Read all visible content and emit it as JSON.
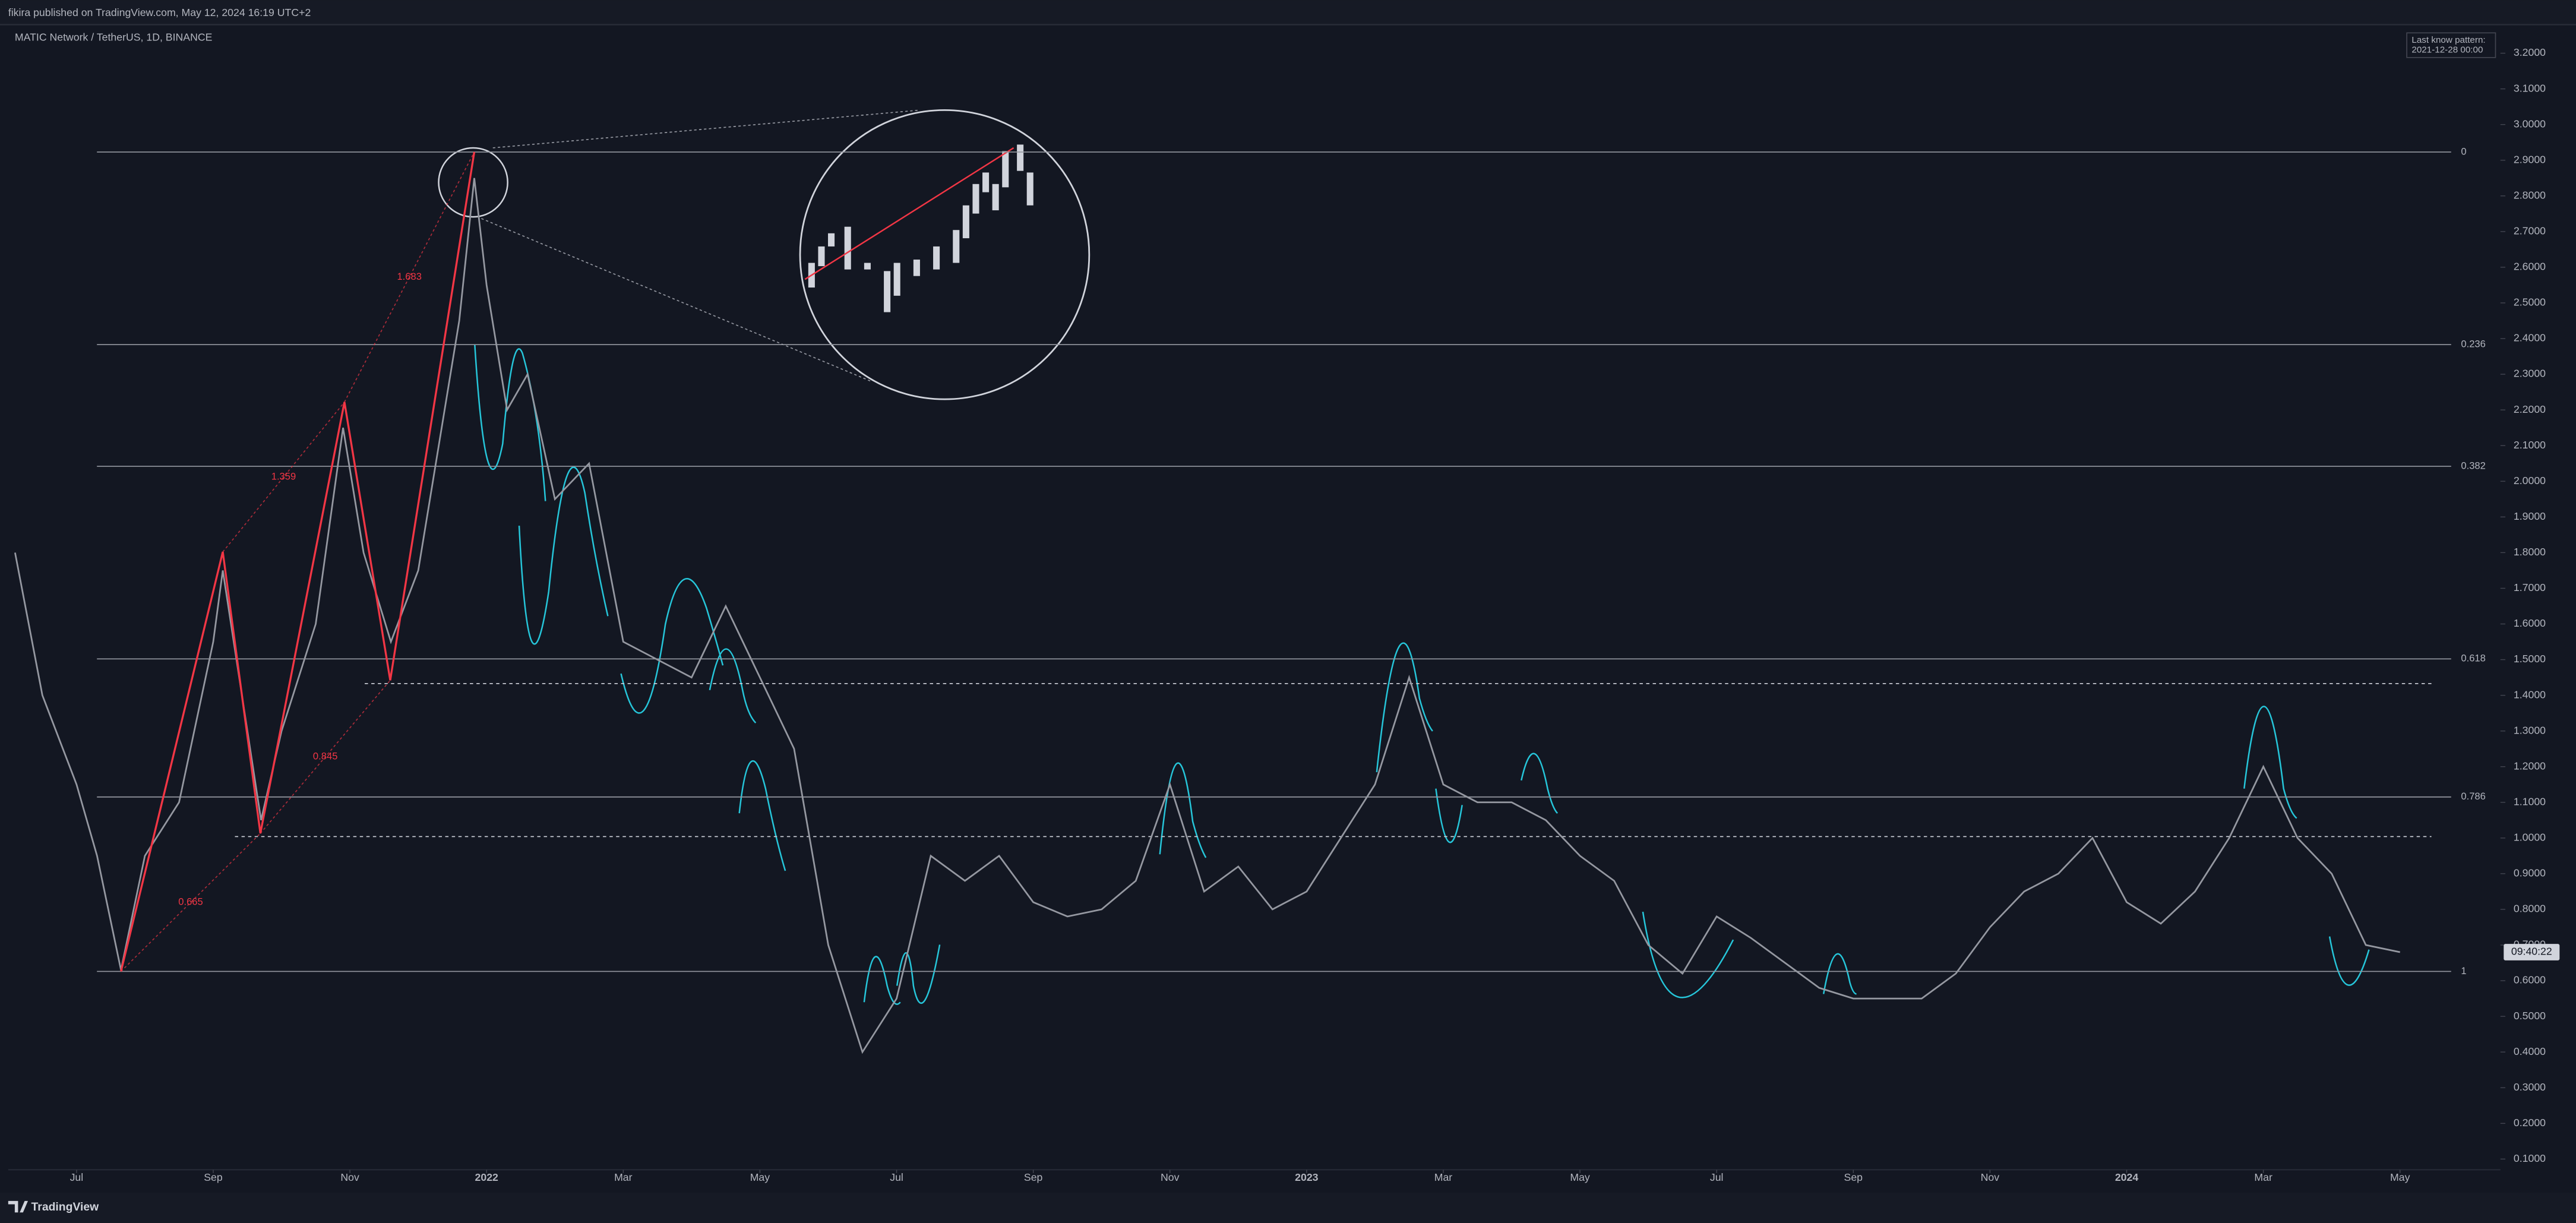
{
  "chart_data": {
    "type": "line",
    "published": "fikira published on TradingView.com, May 12, 2024 16:19 UTC+2",
    "title": "MATIC Network / TetherUS, 1D, BINANCE",
    "annotations": [
      "Last know pattern:",
      "2021-12-28 00:00"
    ],
    "countdown": "09:40:22",
    "brand": "TradingView",
    "color": "#9598a1",
    "grid": false,
    "x": [
      -0.9,
      -0.5,
      0,
      0.3,
      0.65,
      1,
      1.5,
      2,
      2.14,
      2.5,
      2.7,
      3,
      3.5,
      3.9,
      4.2,
      4.6,
      5,
      5.3,
      5.6,
      5.82,
      6,
      6.3,
      6.6,
      7,
      7.5,
      8,
      8.5,
      9,
      9.5,
      10,
      10.5,
      11,
      11.5,
      12,
      12.5,
      13,
      13.5,
      14,
      14.5,
      15,
      15.5,
      16,
      16.5,
      17,
      17.5,
      18,
      18.5,
      19,
      19.5,
      20,
      20.5,
      21,
      21.5,
      22,
      22.5,
      23,
      23.5,
      24,
      24.5,
      25,
      25.5,
      26,
      26.5,
      27,
      27.5,
      28,
      28.5,
      29,
      29.5,
      30,
      30.5,
      31,
      31.5,
      32,
      32.5,
      33,
      33.5,
      34
    ],
    "values": [
      1.8,
      1.4,
      1.15,
      0.95,
      0.63,
      0.95,
      1.1,
      1.55,
      1.75,
      1.3,
      1.05,
      1.3,
      1.6,
      2.15,
      1.8,
      1.55,
      1.75,
      2.1,
      2.45,
      2.85,
      2.55,
      2.2,
      2.3,
      1.95,
      2.05,
      1.55,
      1.5,
      1.45,
      1.65,
      1.45,
      1.25,
      0.7,
      0.4,
      0.55,
      0.95,
      0.88,
      0.95,
      0.82,
      0.78,
      0.8,
      0.88,
      1.15,
      0.85,
      0.92,
      0.8,
      0.85,
      1.0,
      1.15,
      1.45,
      1.15,
      1.1,
      1.1,
      1.05,
      0.95,
      0.88,
      0.7,
      0.62,
      0.78,
      0.72,
      0.65,
      0.58,
      0.55,
      0.55,
      0.55,
      0.62,
      0.75,
      0.85,
      0.9,
      1.0,
      0.82,
      0.76,
      0.85,
      1.0,
      1.2,
      1.0,
      0.9,
      0.7,
      0.68
    ],
    "xlim": [
      -1,
      34.7
    ],
    "ylim": [
      0.07,
      3.28
    ],
    "xticks": [
      {
        "value": 0,
        "label": "Jul"
      },
      {
        "value": 2,
        "label": "Sep"
      },
      {
        "value": 4,
        "label": "Nov"
      },
      {
        "value": 6,
        "label": "2022"
      },
      {
        "value": 8,
        "label": "Mar"
      },
      {
        "value": 10,
        "label": "May"
      },
      {
        "value": 12,
        "label": "Jul"
      },
      {
        "value": 14,
        "label": "Sep"
      },
      {
        "value": 16,
        "label": "Nov"
      },
      {
        "value": 18,
        "label": "2023"
      },
      {
        "value": 20,
        "label": "Mar"
      },
      {
        "value": 22,
        "label": "May"
      },
      {
        "value": 24,
        "label": "Jul"
      },
      {
        "value": 26,
        "label": "Sep"
      },
      {
        "value": 28,
        "label": "Nov"
      },
      {
        "value": 30,
        "label": "2024"
      },
      {
        "value": 32,
        "label": "Mar"
      },
      {
        "value": 34,
        "label": "May"
      }
    ],
    "yticks": [
      {
        "value": 0.1,
        "label": "0.1000"
      },
      {
        "value": 0.2,
        "label": "0.2000"
      },
      {
        "value": 0.3,
        "label": "0.3000"
      },
      {
        "value": 0.4,
        "label": "0.4000"
      },
      {
        "value": 0.5,
        "label": "0.5000"
      },
      {
        "value": 0.6,
        "label": "0.6000"
      },
      {
        "value": 0.7,
        "label": "0.7000"
      },
      {
        "value": 0.8,
        "label": "0.8000"
      },
      {
        "value": 0.9,
        "label": "0.9000"
      },
      {
        "value": 1.0,
        "label": "1.0000"
      },
      {
        "value": 1.1,
        "label": "1.1000"
      },
      {
        "value": 1.2,
        "label": "1.2000"
      },
      {
        "value": 1.3,
        "label": "1.3000"
      },
      {
        "value": 1.4,
        "label": "1.4000"
      },
      {
        "value": 1.5,
        "label": "1.5000"
      },
      {
        "value": 1.6,
        "label": "1.6000"
      },
      {
        "value": 1.7,
        "label": "1.7000"
      },
      {
        "value": 1.8,
        "label": "1.8000"
      },
      {
        "value": 1.9,
        "label": "1.9000"
      },
      {
        "value": 2.0,
        "label": "2.0000"
      },
      {
        "value": 2.1,
        "label": "2.1000"
      },
      {
        "value": 2.2,
        "label": "2.2000"
      },
      {
        "value": 2.3,
        "label": "2.3000"
      },
      {
        "value": 2.4,
        "label": "2.4000"
      },
      {
        "value": 2.5,
        "label": "2.5000"
      },
      {
        "value": 2.6,
        "label": "2.6000"
      },
      {
        "value": 2.7,
        "label": "2.7000"
      },
      {
        "value": 2.8,
        "label": "2.8000"
      },
      {
        "value": 2.9,
        "label": "2.9000"
      },
      {
        "value": 3.0,
        "label": "3.0000"
      },
      {
        "value": 3.1,
        "label": "3.1000"
      },
      {
        "value": 3.2,
        "label": "3.2000"
      }
    ],
    "fib_levels": {
      "ratios": [
        0,
        0.236,
        0.382,
        0.618,
        0.786,
        1
      ],
      "prices": [
        2.923,
        2.383,
        2.042,
        1.502,
        1.115,
        0.626
      ]
    },
    "dashed_levels": [
      1.433,
      1.004
    ],
    "pattern": {
      "color": "#f23645",
      "x": [
        0.65,
        2.14,
        2.69,
        3.92,
        4.59,
        5.82
      ],
      "y": [
        0.626,
        1.802,
        1.013,
        2.222,
        1.442,
        2.923
      ],
      "ratios": [
        0.665,
        1.359,
        0.845,
        1.683
      ]
    }
  }
}
